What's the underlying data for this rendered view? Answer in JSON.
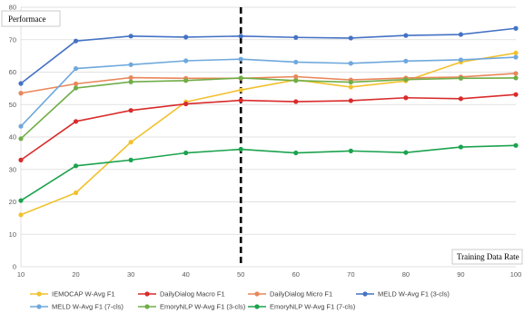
{
  "chart_data": {
    "type": "line",
    "title": "",
    "ylabel": "Performace",
    "xlabel": "Training Data Rate",
    "x": [
      10,
      20,
      30,
      40,
      50,
      60,
      70,
      80,
      90,
      100
    ],
    "xlim": [
      10,
      100
    ],
    "ylim": [
      0,
      80
    ],
    "yticks": [
      0,
      10,
      20,
      30,
      40,
      50,
      60,
      70,
      80
    ],
    "grid": true,
    "legend_position": "bottom",
    "annotations": [
      {
        "type": "vertical-dashed-line",
        "x": 50
      }
    ],
    "series": [
      {
        "name": "IEMOCAP W-Avg F1",
        "color": "#F2C12E",
        "values": [
          16,
          22.8,
          38.4,
          50.8,
          54.5,
          57.6,
          55.4,
          57.3,
          63.1,
          65.9
        ]
      },
      {
        "name": "DailyDialog Macro F1",
        "color": "#D92B2B",
        "values": [
          32.9,
          44.8,
          48.2,
          50.2,
          51.3,
          50.9,
          51.2,
          52.1,
          51.8,
          53.1
        ]
      },
      {
        "name": "DailyDialog Micro F1",
        "color": "#E8875A",
        "values": [
          53.5,
          56.4,
          58.3,
          58.1,
          58.1,
          58.6,
          57.6,
          58.2,
          58.5,
          59.6
        ]
      },
      {
        "name": "MELD W-Avg F1 (3-cls)",
        "color": "#4472C4",
        "values": [
          56.5,
          69.6,
          71.1,
          70.8,
          71.1,
          70.7,
          70.5,
          71.3,
          71.6,
          73.5
        ]
      },
      {
        "name": "MELD W-Avg F1 (7-cls)",
        "color": "#6FA8DC",
        "values": [
          43.3,
          61.1,
          62.3,
          63.5,
          64,
          63.1,
          62.7,
          63.4,
          63.8,
          64.6
        ]
      },
      {
        "name": "EmoryNLP W-Avg F1 (3-cls)",
        "color": "#70AD47",
        "values": [
          39.5,
          55.1,
          57,
          57.4,
          58.2,
          57.4,
          56.9,
          57.7,
          58.1,
          58.2
        ]
      },
      {
        "name": "EmoryNLP W-Avg F1 (7-cls)",
        "color": "#1BA34E",
        "values": [
          20.4,
          31.1,
          32.9,
          35.1,
          36.2,
          35.1,
          35.7,
          35.2,
          36.9,
          37.4
        ]
      }
    ]
  }
}
